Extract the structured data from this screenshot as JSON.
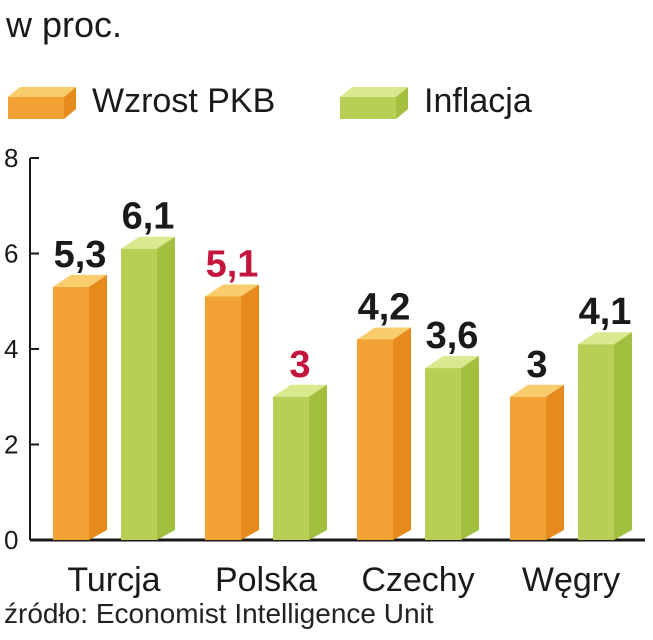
{
  "chart_data": {
    "type": "bar",
    "subtitle": "w proc.",
    "categories": [
      "Turcja",
      "Polska",
      "Czechy",
      "Węgry"
    ],
    "series": [
      {
        "name": "Wzrost PKB",
        "values": [
          5.3,
          5.1,
          4.2,
          3
        ],
        "labels": [
          "5,3",
          "5,1",
          "4,2",
          "3"
        ],
        "label_colors": [
          "#1a1a1a",
          "#c4163c",
          "#1a1a1a",
          "#1a1a1a"
        ]
      },
      {
        "name": "Inflacja",
        "values": [
          6.1,
          3,
          3.6,
          4.1
        ],
        "labels": [
          "6,1",
          "3",
          "3,6",
          "4,1"
        ],
        "label_colors": [
          "#1a1a1a",
          "#c4163c",
          "#1a1a1a",
          "#1a1a1a"
        ]
      }
    ],
    "ylim": [
      0,
      8
    ],
    "yticks": [
      "0",
      "2",
      "4",
      "6",
      "8"
    ],
    "source": "źródło: Economist Intelligence Unit"
  },
  "colors": {
    "pkb_front": "#f2a134",
    "pkb_side": "#e68a1e",
    "pkb_top": "#f9cc6c",
    "inf_front": "#b7cf55",
    "inf_side": "#a3bf3f",
    "inf_top": "#d9ea8e",
    "axis": "#1a1a1a"
  }
}
